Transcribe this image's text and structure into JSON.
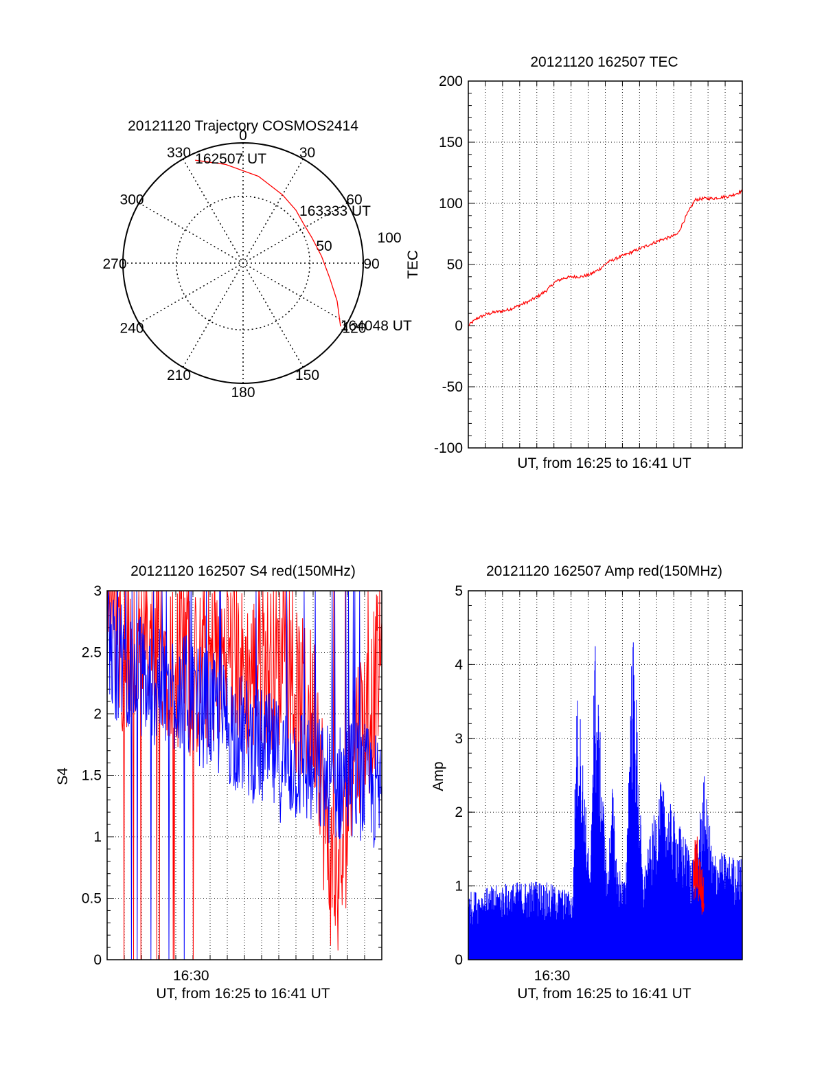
{
  "chart_data": [
    {
      "type": "polar-trajectory",
      "title": "20121120 Trajectory COSMOS2414",
      "azimuth_labels": [
        "0",
        "30",
        "60",
        "90",
        "120",
        "150",
        "180",
        "210",
        "240",
        "270",
        "300",
        "330"
      ],
      "radial_labels": [
        "50",
        "100"
      ],
      "points": [
        {
          "label": "162507 UT",
          "az": 335,
          "el": 5
        },
        {
          "label": "163333 UT",
          "az": 57,
          "el": 36
        },
        {
          "label": "164048 UT",
          "az": 123,
          "el": 3
        }
      ],
      "track": [
        [
          335,
          5
        ],
        [
          350,
          15
        ],
        [
          10,
          24
        ],
        [
          30,
          31
        ],
        [
          45,
          34
        ],
        [
          57,
          36
        ],
        [
          70,
          35
        ],
        [
          85,
          31
        ],
        [
          100,
          24
        ],
        [
          112,
          14
        ],
        [
          123,
          3
        ]
      ],
      "track_color": "#ff0000"
    },
    {
      "type": "line",
      "title": "20121120 162507 TEC",
      "xlabel": "UT, from 16:25 to 16:41 UT",
      "ylabel": "TEC",
      "ylim": [
        -100,
        200
      ],
      "yticks": [
        "-100",
        "-50",
        "0",
        "50",
        "100",
        "150",
        "200"
      ],
      "xlim": [
        0,
        15.7
      ],
      "grid": true,
      "series": [
        {
          "color": "#ff0000",
          "x": [
            0,
            0.5,
            1,
            1.5,
            2,
            2.5,
            3,
            3.5,
            4,
            4.5,
            5,
            5.5,
            6,
            6.5,
            7,
            7.5,
            8,
            8.5,
            9,
            9.5,
            10,
            10.5,
            11,
            11.5,
            12,
            12.5,
            13,
            13.5,
            14,
            14.5,
            15,
            15.7
          ],
          "y": [
            0,
            6,
            9,
            11,
            12,
            14,
            17,
            20,
            24,
            29,
            36,
            39,
            40,
            40,
            42,
            46,
            52,
            55,
            58,
            61,
            64,
            67,
            70,
            72,
            75,
            90,
            103,
            104,
            104,
            105,
            106,
            110
          ]
        }
      ]
    },
    {
      "type": "line",
      "title": "20121120 162507 S4 red(150MHz)",
      "xlabel": "UT, from 16:25 to 16:41 UT",
      "ylabel": "S4",
      "ylim": [
        0,
        3
      ],
      "yticks": [
        "0",
        "0.5",
        "1",
        "1.5",
        "2",
        "2.5",
        "3"
      ],
      "xtick_labels": [
        "16:30"
      ],
      "xtick_positions": [
        4.8
      ],
      "xlim": [
        0,
        15.7
      ],
      "grid": true,
      "series": [
        {
          "color": "#ff0000",
          "x": [
            0,
            1,
            2,
            3,
            4,
            5,
            6,
            7,
            8,
            9,
            10,
            11,
            12,
            12.5,
            13,
            13.5,
            14,
            15,
            15.7
          ],
          "y": [
            2.9,
            2.5,
            2.4,
            2.6,
            2.4,
            2.3,
            2.4,
            2.5,
            2.3,
            2.4,
            2.4,
            2.1,
            2.0,
            1.0,
            0.6,
            0.8,
            1.8,
            2.0,
            2.5
          ]
        },
        {
          "color": "#0000ff",
          "x": [
            0,
            1,
            2,
            3,
            4,
            5,
            6,
            7,
            8,
            9,
            10,
            11,
            12,
            13,
            14,
            15,
            15.7
          ],
          "y": [
            2.5,
            2.4,
            2.3,
            2.2,
            2.2,
            2.1,
            2.0,
            1.9,
            1.8,
            1.7,
            1.6,
            1.6,
            1.5,
            1.4,
            1.5,
            1.4,
            1.3
          ]
        }
      ]
    },
    {
      "type": "line",
      "title": "20121120 162507 Amp red(150MHz)",
      "xlabel": "UT, from 16:25 to 16:41 UT",
      "ylabel": "Amp",
      "ylim": [
        0,
        5
      ],
      "yticks": [
        "0",
        "1",
        "2",
        "3",
        "4",
        "5"
      ],
      "xtick_labels": [
        "16:30"
      ],
      "xtick_positions": [
        4.8
      ],
      "xlim": [
        0,
        15.7
      ],
      "grid": true,
      "series": [
        {
          "color": "#0000ff",
          "x": [
            0,
            2,
            4,
            6,
            6.2,
            6.4,
            7,
            7.2,
            7.4,
            8,
            8.2,
            8.5,
            9,
            9.4,
            9.6,
            10,
            11,
            13,
            13.5,
            14,
            15.7
          ],
          "y": [
            0.8,
            0.9,
            0.95,
            0.8,
            3.2,
            3.0,
            0.9,
            4.1,
            3.3,
            0.9,
            2.3,
            1.2,
            0.9,
            4.0,
            3.3,
            1.0,
            2.1,
            1.2,
            2.2,
            1.3,
            1.2
          ]
        },
        {
          "color": "#ff0000",
          "x": [
            12.9,
            13.1,
            13.3,
            13.5
          ],
          "y": [
            1.4,
            1.5,
            1.2,
            1.0
          ]
        }
      ]
    }
  ]
}
